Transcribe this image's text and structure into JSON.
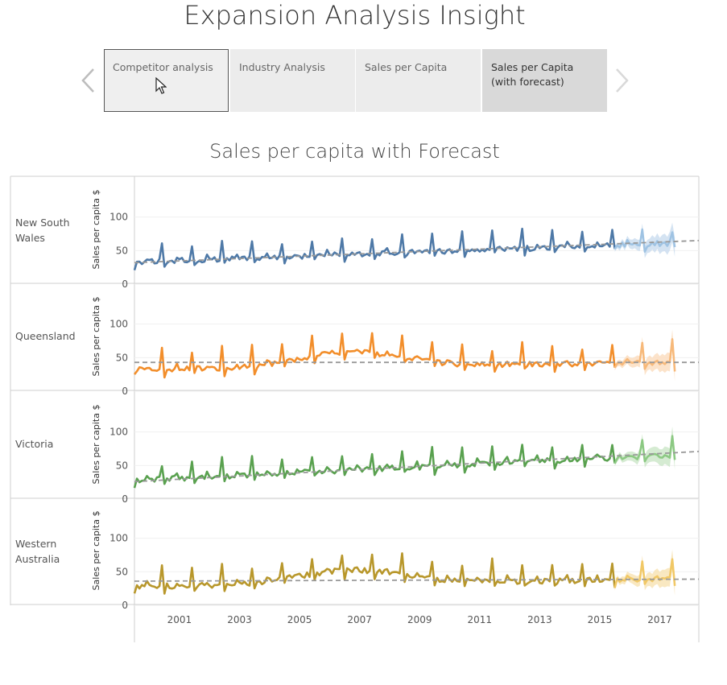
{
  "page_title": "Expansion Analysis Insight",
  "tabs": [
    {
      "label": "Competitor analysis",
      "state": "hover"
    },
    {
      "label": "Industry Analysis",
      "state": "normal"
    },
    {
      "label": "Sales per Capita",
      "state": "normal"
    },
    {
      "label": "Sales per Capita\n(with forecast)",
      "state": "active"
    }
  ],
  "nav": {
    "prev_icon": "chevron-left-icon",
    "next_icon": "chevron-right-icon",
    "cursor_icon": "mouse-pointer-icon"
  },
  "chart_data": {
    "type": "line",
    "title": "Sales per capita with Forecast",
    "ylabel": "Sales per capita $",
    "ylim": [
      0,
      120
    ],
    "yticks": [
      0,
      50,
      100
    ],
    "xlim": [
      2000,
      2018.8
    ],
    "xticks": [
      2001,
      2003,
      2005,
      2007,
      2009,
      2011,
      2013,
      2015,
      2017
    ],
    "actual_end": 2016.0,
    "forecast_end": 2018.0,
    "grid": true,
    "trend_color": "#999999",
    "series": [
      {
        "name": "New South Wales",
        "color": "#4e79a7",
        "forecast_color": "#9fc3e3",
        "band_color": "#c9dcef",
        "base": 33,
        "growth": 1.55,
        "season_amp": 18,
        "trend_start": 32,
        "trend_end": 65
      },
      {
        "name": "Queensland",
        "color": "#f28e2b",
        "forecast_color": "#f7b97a",
        "band_color": "#fbdcbd",
        "base": 32,
        "growth": 0.6,
        "season_amp": 22,
        "trend_start": 43,
        "trend_end": 43,
        "hump": 22
      },
      {
        "name": "Victoria",
        "color": "#59a14f",
        "forecast_color": "#8cc983",
        "band_color": "#cbe6c7",
        "base": 28,
        "growth": 2.1,
        "season_amp": 20,
        "trend_start": 26,
        "trend_end": 71
      },
      {
        "name": "Western Australia",
        "color": "#b8972b",
        "forecast_color": "#f1c866",
        "band_color": "#f7e2b1",
        "base": 28,
        "growth": 0.6,
        "season_amp": 22,
        "trend_start": 36,
        "trend_end": 39,
        "hump": 20
      }
    ]
  }
}
